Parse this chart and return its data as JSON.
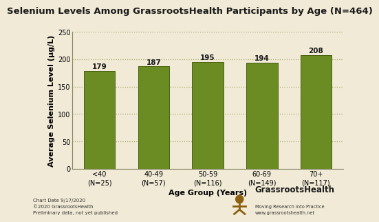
{
  "title": "Selenium Levels Among GrassrootsHealth Participants by Age (N=464)",
  "categories": [
    "<40\n(N=25)",
    "40-49\n(N=57)",
    "50-59\n(N=116)",
    "60-69\n(N=149)",
    "70+\n(N=117)"
  ],
  "values": [
    179,
    187,
    195,
    194,
    208
  ],
  "bar_color": "#6b8c23",
  "bar_edge_color": "#4a6010",
  "background_color": "#f0ead6",
  "text_color": "#1a1a1a",
  "ylabel": "Average Selenium Level (µg/L)",
  "xlabel": "Age Group (Years)",
  "ylim": [
    0,
    250
  ],
  "yticks": [
    0,
    50,
    100,
    150,
    200,
    250
  ],
  "grid_color": "#a0a060",
  "grid_style": ":",
  "grid_alpha": 0.85,
  "title_fontsize": 9.5,
  "label_fontsize": 8,
  "tick_fontsize": 7,
  "bar_value_fontsize": 7.5,
  "footer_left": "Chart Date 9/17/2020\n©2020 GrassrootsHealth\nPreliminary data, not yet published",
  "footer_right_bold": "GrassrootsHealth",
  "footer_right_small": "Moving Research into Practice\nwww.grassrootshealth.net",
  "logo_color": "#c8a020",
  "bar_width": 0.58
}
